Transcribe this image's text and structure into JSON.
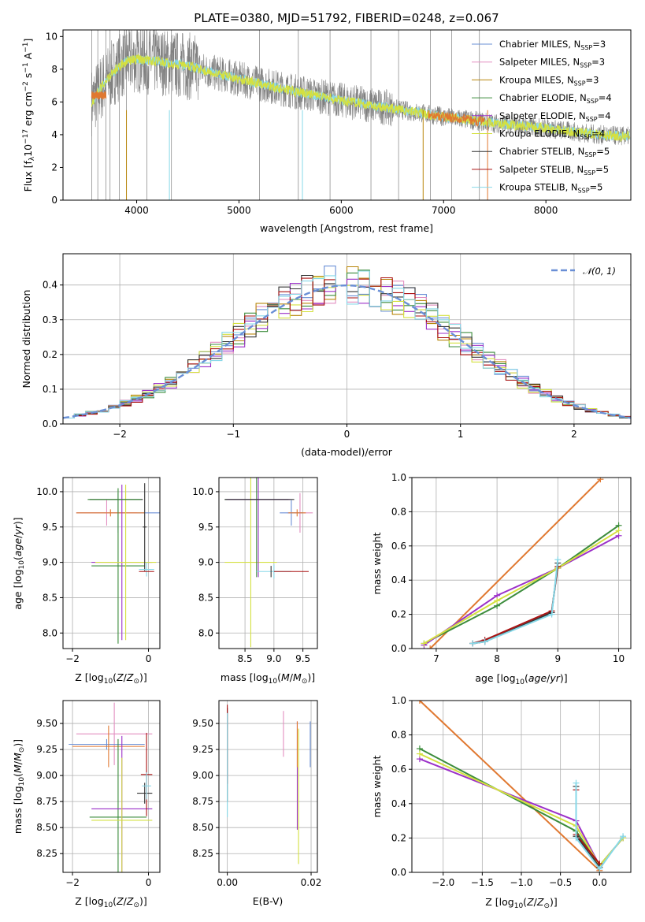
{
  "page": {
    "title": "PLATE=0380, MJD=51792, FIBERID=0248, z=0.067"
  },
  "colors": {
    "Chabrier MILES": "#6a8fd6",
    "Salpeter MILES": "#e38fc0",
    "Kroupa MILES": "#b8860b",
    "Chabrier ELODIE": "#3c8c3c",
    "Salpeter ELODIE": "#9b30c8",
    "Kroupa ELODIE": "#d4e040",
    "Chabrier STELIB": "#333333",
    "Salpeter STELIB": "#aa1111",
    "Kroupa STELIB": "#87d8e8",
    "data": "#808080",
    "model": "#e07830"
  },
  "chart_data": [
    {
      "type": "line",
      "title": "PLATE=0380, MJD=51792, FIBERID=0248, z=0.067",
      "xlabel": "wavelength [Angstrom, rest frame]",
      "ylabel": "Flux [fλ10⁻¹⁷ erg cm⁻² s⁻¹ A⁻¹]",
      "xlim": [
        3280,
        8830
      ],
      "ylim": [
        0,
        10.4
      ],
      "xticks": [
        4000,
        5000,
        6000,
        7000,
        8000
      ],
      "yticks": [
        0,
        2,
        4,
        6,
        8,
        10
      ],
      "legend_position": "top-right",
      "legend": [
        {
          "label": "Chabrier MILES, N",
          "sub": "SSP",
          "tail": "=3"
        },
        {
          "label": "Salpeter MILES, N",
          "sub": "SSP",
          "tail": "=3"
        },
        {
          "label": "Kroupa MILES, N",
          "sub": "SSP",
          "tail": "=3"
        },
        {
          "label": "Chabrier ELODIE, N",
          "sub": "SSP",
          "tail": "=4"
        },
        {
          "label": "Salpeter ELODIE, N",
          "sub": "SSP",
          "tail": "=4"
        },
        {
          "label": "Kroupa ELODIE, N",
          "sub": "SSP",
          "tail": "=4"
        },
        {
          "label": "Chabrier STELIB, N",
          "sub": "SSP",
          "tail": "=5"
        },
        {
          "label": "Salpeter STELIB, N",
          "sub": "SSP",
          "tail": "=5"
        },
        {
          "label": "Kroupa STELIB, N",
          "sub": "SSP",
          "tail": "=5"
        }
      ],
      "continuum": {
        "x": [
          3560,
          3700,
          3800,
          3900,
          4000,
          4200,
          4500,
          5000,
          5500,
          6000,
          6500,
          7000,
          7500,
          8000,
          8500,
          8800
        ],
        "y": [
          6.0,
          7.3,
          8.0,
          8.5,
          8.6,
          8.5,
          8.2,
          7.4,
          6.7,
          6.1,
          5.6,
          5.1,
          4.7,
          4.4,
          4.0,
          3.9
        ]
      }
    },
    {
      "type": "bar",
      "subtype": "step-histogram",
      "xlabel": "(data-model)/error",
      "ylabel": "Normed distribution",
      "xlim": [
        -2.5,
        2.5
      ],
      "ylim": [
        0,
        0.49
      ],
      "xticks": [
        -2,
        -1,
        0,
        1,
        2
      ],
      "yticks": [
        0.0,
        0.1,
        0.2,
        0.3,
        0.4
      ],
      "grid": true,
      "bin_width": 0.1,
      "bin_edges_start": -2.5,
      "reference_curve": {
        "label": "𝒩(0, 1)",
        "mean": 0,
        "sigma": 1,
        "legend_position": "top-right"
      }
    },
    {
      "type": "scatter",
      "subtype": "errorbar",
      "xlabel": "Z [log₁₀(Z/Z⊙)]",
      "ylabel": "age  [log₁₀(age/yr)]",
      "xlim": [
        -2.25,
        0.3
      ],
      "ylim": [
        7.78,
        10.2
      ],
      "xticks": [
        -2,
        0
      ],
      "yticks": [
        8.0,
        8.5,
        9.0,
        9.5,
        10.0
      ],
      "grid": true
    },
    {
      "type": "scatter",
      "subtype": "errorbar",
      "xlabel": "mass [log₁₀(M/M⊙)]",
      "xlim": [
        8.05,
        9.75
      ],
      "ylim": [
        7.78,
        10.2
      ],
      "xticks": [
        8.5,
        9.0,
        9.5
      ],
      "yticks": [
        8.0,
        8.5,
        9.0,
        9.5,
        10.0
      ],
      "grid": true
    },
    {
      "type": "line",
      "xlabel": "age  [log₁₀(age/yr)]",
      "ylabel": "mass weight",
      "xlim": [
        6.6,
        10.2
      ],
      "ylim": [
        0,
        1.0
      ],
      "xticks": [
        7,
        8,
        9,
        10
      ],
      "yticks": [
        0.0,
        0.2,
        0.4,
        0.6,
        0.8,
        1.0
      ],
      "grid": true,
      "series": [
        {
          "key": "model",
          "x": [
            6.9,
            9.7
          ],
          "y": [
            0.0,
            0.99
          ]
        },
        {
          "key": "Chabrier ELODIE",
          "x": [
            6.8,
            8.0,
            9.0,
            10.0
          ],
          "y": [
            0.03,
            0.25,
            0.47,
            0.72
          ]
        },
        {
          "key": "Salpeter ELODIE",
          "x": [
            6.8,
            8.0,
            9.0,
            10.0
          ],
          "y": [
            0.02,
            0.31,
            0.47,
            0.66
          ]
        },
        {
          "key": "Kroupa ELODIE",
          "x": [
            6.8,
            8.0,
            9.0,
            10.0
          ],
          "y": [
            0.03,
            0.28,
            0.47,
            0.69
          ]
        },
        {
          "key": "Salpeter STELIB",
          "x": [
            7.6,
            7.8,
            8.9,
            9.0
          ],
          "y": [
            0.03,
            0.05,
            0.22,
            0.48
          ]
        },
        {
          "key": "Chabrier STELIB",
          "x": [
            7.6,
            7.8,
            8.9,
            9.0
          ],
          "y": [
            0.03,
            0.04,
            0.21,
            0.5
          ]
        },
        {
          "key": "Kroupa STELIB",
          "x": [
            7.6,
            7.8,
            8.9,
            9.0
          ],
          "y": [
            0.03,
            0.04,
            0.2,
            0.52
          ]
        }
      ]
    },
    {
      "type": "scatter",
      "subtype": "errorbar",
      "xlabel": "Z [log₁₀(Z/Z⊙)]",
      "ylabel": "mass [log₁₀(M/M⊙)]",
      "xlim": [
        -2.25,
        0.3
      ],
      "ylim": [
        8.07,
        9.72
      ],
      "xticks": [
        -2,
        0
      ],
      "yticks": [
        8.25,
        8.5,
        8.75,
        9.0,
        9.25,
        9.5
      ],
      "grid": true
    },
    {
      "type": "scatter",
      "subtype": "errorbar",
      "xlabel": "E(B-V)",
      "xlim": [
        -0.002,
        0.0215
      ],
      "ylim": [
        8.07,
        9.72
      ],
      "xticks": [
        0.0,
        0.02
      ],
      "yticks": [
        8.25,
        8.5,
        8.75,
        9.0,
        9.25,
        9.5
      ],
      "grid": true
    },
    {
      "type": "line",
      "xlabel": "Z [log₁₀(Z/Z⊙)]",
      "ylabel": "mass weight",
      "xlim": [
        -2.4,
        0.4
      ],
      "ylim": [
        0,
        1.0
      ],
      "xticks": [
        -2.0,
        -1.5,
        -1.0,
        -0.5,
        0.0
      ],
      "yticks": [
        0.0,
        0.2,
        0.4,
        0.6,
        0.8,
        1.0
      ],
      "grid": true,
      "series": [
        {
          "key": "model",
          "x": [
            -2.3,
            0.0
          ],
          "y": [
            1.0,
            0.01
          ]
        },
        {
          "key": "Chabrier ELODIE",
          "x": [
            -2.3,
            -0.3,
            0.0,
            0.3
          ],
          "y": [
            0.72,
            0.24,
            0.04,
            0.2
          ]
        },
        {
          "key": "Salpeter ELODIE",
          "x": [
            -2.3,
            -0.3,
            0.0,
            0.3
          ],
          "y": [
            0.66,
            0.3,
            0.04,
            0.2
          ]
        },
        {
          "key": "Kroupa ELODIE",
          "x": [
            -2.3,
            -0.3,
            0.0,
            0.3
          ],
          "y": [
            0.69,
            0.27,
            0.04,
            0.2
          ]
        },
        {
          "key": "Salpeter STELIB",
          "x": [
            -0.3,
            -0.3,
            0.0
          ],
          "y": [
            0.48,
            0.22,
            0.05
          ]
        },
        {
          "key": "Chabrier STELIB",
          "x": [
            -0.3,
            -0.3,
            0.0
          ],
          "y": [
            0.5,
            0.21,
            0.03
          ]
        },
        {
          "key": "Kroupa STELIB",
          "x": [
            -0.3,
            -0.3,
            0.0,
            0.3
          ],
          "y": [
            0.52,
            0.2,
            0.02,
            0.21
          ]
        }
      ]
    }
  ],
  "errorbars": {
    "age_vs_Z": [
      {
        "key": "Chabrier MILES",
        "x": -0.8,
        "y": 9.7,
        "xe": 1.1,
        "ye": 0.28
      },
      {
        "key": "Salpeter MILES",
        "x": -1.1,
        "y": 9.7,
        "xe": 0.8,
        "ye": 0.18
      },
      {
        "key": "model",
        "x": -1.0,
        "y": 9.7,
        "xe": 0.9,
        "ye": 0.05
      },
      {
        "key": "Chabrier ELODIE",
        "x": -0.8,
        "y": 8.95,
        "xe": 0.7,
        "ye": 1.1
      },
      {
        "key": "Salpeter ELODIE",
        "x": -0.7,
        "y": 9.0,
        "xe": 0.8,
        "ye": 1.1
      },
      {
        "key": "Kroupa ELODIE",
        "x": -0.6,
        "y": 9.0,
        "xe": 0.8,
        "ye": 1.1
      },
      {
        "key": "Chabrier STELIB",
        "x": -0.85,
        "y": 9.89,
        "xe": 0.7,
        "ye": 0.0
      },
      {
        "key": "Chabrier ELODIE",
        "x": -0.9,
        "y": 9.89,
        "xe": 0.7,
        "ye": 0.0
      },
      {
        "key": "Chabrier STELIB",
        "x": -0.1,
        "y": 9.5,
        "xe": 0.05,
        "ye": 0.62
      },
      {
        "key": "Kroupa STELIB",
        "x": -0.05,
        "y": 8.9,
        "xe": 0.2,
        "ye": 0.1
      },
      {
        "key": "Salpeter STELIB",
        "x": -0.05,
        "y": 8.87,
        "xe": 0.2,
        "ye": 0.0
      }
    ],
    "age_vs_mass": [
      {
        "key": "Salpeter MILES",
        "x": 9.45,
        "y": 9.7,
        "xe": 0.22,
        "ye": 0.28
      },
      {
        "key": "Chabrier MILES",
        "x": 9.3,
        "y": 9.7,
        "xe": 0.2,
        "ye": 0.18
      },
      {
        "key": "model",
        "x": 9.4,
        "y": 9.7,
        "xe": 0.15,
        "ye": 0.05
      },
      {
        "key": "Kroupa ELODIE",
        "x": 8.6,
        "y": 9.0,
        "xe": 0.45,
        "ye": 1.2
      },
      {
        "key": "Chabrier ELODIE",
        "x": 8.7,
        "y": 9.89,
        "xe": 0.55,
        "ye": 1.1
      },
      {
        "key": "Salpeter ELODIE",
        "x": 8.73,
        "y": 9.89,
        "xe": 0.55,
        "ye": 1.1
      },
      {
        "key": "Chabrier STELIB",
        "x": 8.75,
        "y": 9.89,
        "xe": 0.6,
        "ye": 0.0
      },
      {
        "key": "Kroupa STELIB",
        "x": 9.0,
        "y": 8.87,
        "xe": 0.3,
        "ye": 0.1
      },
      {
        "key": "Salpeter STELIB",
        "x": 9.3,
        "y": 8.87,
        "xe": 0.3,
        "ye": 0.0
      },
      {
        "key": "Chabrier STELIB",
        "x": 8.95,
        "y": 8.87,
        "xe": 0.0,
        "ye": 0.08
      }
    ],
    "mass_vs_Z": [
      {
        "key": "Salpeter MILES",
        "x": -0.9,
        "y": 9.4,
        "xe": 1.0,
        "ye": 0.3
      },
      {
        "key": "Chabrier MILES",
        "x": -1.1,
        "y": 9.3,
        "xe": 1.0,
        "ye": 0.05
      },
      {
        "key": "model",
        "x": -1.05,
        "y": 9.28,
        "xe": 0.95,
        "ye": 0.2
      },
      {
        "key": "Chabrier ELODIE",
        "x": -0.8,
        "y": 8.6,
        "xe": 0.75,
        "ye": 0.75
      },
      {
        "key": "Salpeter ELODIE",
        "x": -0.7,
        "y": 8.68,
        "xe": 0.8,
        "ye": 0.7
      },
      {
        "key": "Kroupa ELODIE",
        "x": -0.7,
        "y": 8.57,
        "xe": 0.8,
        "ye": 0.6
      },
      {
        "key": "Chabrier STELIB",
        "x": -0.1,
        "y": 8.83,
        "xe": 0.2,
        "ye": 0.1
      },
      {
        "key": "Salpeter STELIB",
        "x": -0.05,
        "y": 9.01,
        "xe": 0.15,
        "ye": 0.4
      },
      {
        "key": "Kroupa STELIB",
        "x": -0.05,
        "y": 8.9,
        "xe": 0.12,
        "ye": 0.13
      }
    ],
    "mass_vs_EBV": [
      {
        "key": "Chabrier STELIB",
        "x": 0.0,
        "y": 9.2,
        "xe": 0.0,
        "ye": 0.45
      },
      {
        "key": "Salpeter STELIB",
        "x": 0.0,
        "y": 9.3,
        "xe": 0.0,
        "ye": 0.38
      },
      {
        "key": "Kroupa STELIB",
        "x": 0.0,
        "y": 9.1,
        "xe": 0.0,
        "ye": 0.5
      },
      {
        "key": "Salpeter MILES",
        "x": 0.0134,
        "y": 9.4,
        "xe": 0.0,
        "ye": 0.22
      },
      {
        "key": "Salpeter ELODIE",
        "x": 0.0167,
        "y": 9.0,
        "xe": 0.0,
        "ye": 0.52
      },
      {
        "key": "Kroupa ELODIE",
        "x": 0.017,
        "y": 8.8,
        "xe": 0.0,
        "ye": 0.65
      },
      {
        "key": "model",
        "x": 0.0167,
        "y": 9.3,
        "xe": 0.0,
        "ye": 0.22
      },
      {
        "key": "Chabrier MILES",
        "x": 0.0198,
        "y": 9.3,
        "xe": 0.0,
        "ye": 0.22
      }
    ]
  }
}
